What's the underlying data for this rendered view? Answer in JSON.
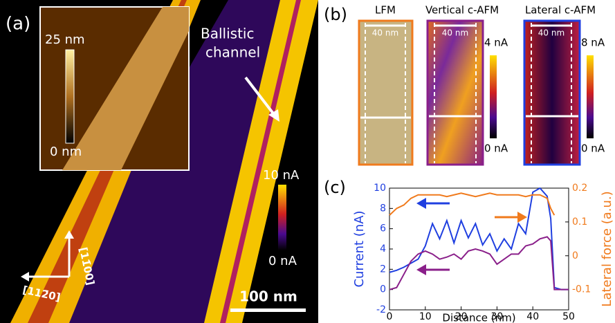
{
  "panel_a": {
    "label": "(a)",
    "inset_scale": {
      "max": "25 nm",
      "min": "0 nm"
    },
    "annotation": [
      "Ballistic",
      "channel"
    ],
    "colorbar": {
      "max": "10 nA",
      "min": "0 nA"
    },
    "scale_bar": "100 nm",
    "directions": [
      "[112̄0]",
      "[11̄00]"
    ]
  },
  "panel_b": {
    "label": "(b)",
    "maps": [
      {
        "title": "LFM",
        "scale": "40 nm"
      },
      {
        "title": "Vertical c-AFM",
        "scale": "40 nm",
        "colorbar": {
          "max": "4 nA",
          "min": "0 nA"
        }
      },
      {
        "title": "Lateral c-AFM",
        "scale": "40 nm",
        "colorbar": {
          "max": "8 nA",
          "min": "0 nA"
        }
      }
    ]
  },
  "chart_data": {
    "type": "line",
    "label": "(c)",
    "xlabel": "Distance (nm)",
    "ylabel": "Current (nA)",
    "y2label": "Lateral force (a.u.)",
    "x": [
      0,
      2,
      4,
      6,
      8,
      10,
      12,
      14,
      16,
      18,
      20,
      22,
      24,
      26,
      28,
      30,
      32,
      34,
      36,
      38,
      40,
      42,
      44,
      45,
      46,
      48,
      50
    ],
    "series": [
      {
        "color": "#1f3fe0",
        "values": [
          1.7,
          1.9,
          2.2,
          2.6,
          3.0,
          4.3,
          6.5,
          5.0,
          6.8,
          4.6,
          6.8,
          5.1,
          6.5,
          4.4,
          5.5,
          3.8,
          5.0,
          4.0,
          6.5,
          5.5,
          9.6,
          10,
          9.2,
          7,
          0.2,
          0,
          0
        ]
      },
      {
        "color": "#8a1f8a",
        "values": [
          0,
          0.2,
          1.5,
          2.8,
          3.5,
          3.8,
          3.5,
          3.0,
          3.2,
          3.5,
          3.0,
          3.8,
          4.0,
          3.8,
          3.5,
          2.5,
          3.0,
          3.5,
          3.5,
          4.3,
          4.5,
          5.0,
          5.2,
          4.8,
          0,
          0,
          0
        ]
      },
      {
        "color": "#f07a1c",
        "axis": "y2",
        "values": [
          0.12,
          0.14,
          0.15,
          0.17,
          0.18,
          0.18,
          0.18,
          0.18,
          0.175,
          0.18,
          0.185,
          0.18,
          0.175,
          0.18,
          0.185,
          0.18,
          0.18,
          0.18,
          0.18,
          0.175,
          0.18,
          0.18,
          0.17,
          0.14,
          0.12,
          null,
          null
        ]
      }
    ],
    "xlim": [
      0,
      50
    ],
    "xticks": [
      0,
      10,
      20,
      30,
      40,
      50
    ],
    "ylim": [
      -2,
      10
    ],
    "yticks": [
      -2,
      0,
      2,
      4,
      6,
      8,
      10
    ],
    "y2lim": [
      -0.16,
      0.2
    ],
    "y2ticks": [
      -0.1,
      0,
      0.1,
      0.2
    ]
  }
}
